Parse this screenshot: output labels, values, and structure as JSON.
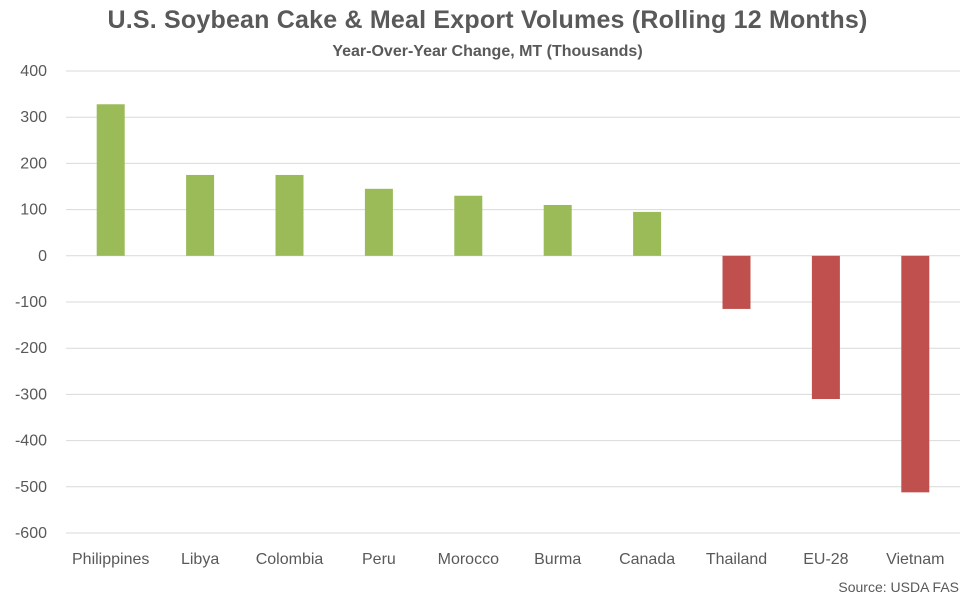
{
  "chart_data": {
    "type": "bar",
    "title": "U.S. Soybean Cake & Meal Export Volumes (Rolling 12 Months)",
    "subtitle": "Year-Over-Year Change, MT (Thousands)",
    "source": "Source: USDA FAS",
    "categories": [
      "Philippines",
      "Libya",
      "Colombia",
      "Peru",
      "Morocco",
      "Burma",
      "Canada",
      "Thailand",
      "EU-28",
      "Vietnam"
    ],
    "values": [
      328,
      175,
      175,
      145,
      130,
      110,
      95,
      -115,
      -310,
      -512
    ],
    "ylim": [
      -600,
      400
    ],
    "yticks": [
      400,
      300,
      200,
      100,
      0,
      -100,
      -200,
      -300,
      -400,
      -500,
      -600
    ],
    "grid": true,
    "colors": {
      "positive": "#9BBB59",
      "negative": "#C0504D",
      "grid": "#D9D9D9",
      "text": "#595959"
    }
  }
}
